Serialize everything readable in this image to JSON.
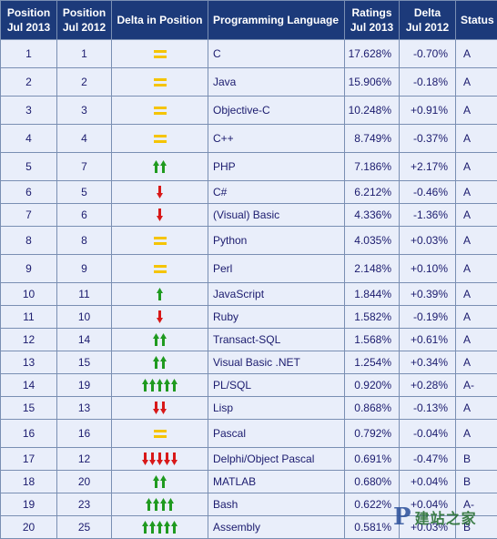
{
  "headers": {
    "pos2013": [
      "Position",
      "Jul 2013"
    ],
    "pos2012": [
      "Position",
      "Jul 2012"
    ],
    "delta_pos": "Delta in Position",
    "language": "Programming Language",
    "ratings": [
      "Ratings",
      "Jul 2013"
    ],
    "delta": [
      "Delta",
      "Jul 2012"
    ],
    "status": "Status"
  },
  "colors": {
    "header_bg": "#1c3a7a",
    "cell_bg": "#e9eefa",
    "up_arrow": "#1f9a1f",
    "down_arrow": "#d81818",
    "equal_sign": "#f5c400",
    "grid": "#7a8fb3"
  },
  "rows": [
    {
      "pos2013": "1",
      "pos2012": "1",
      "trend": "equal",
      "arrows": 0,
      "language": "C",
      "ratings": "17.628%",
      "delta": "-0.70%",
      "status": "A"
    },
    {
      "pos2013": "2",
      "pos2012": "2",
      "trend": "equal",
      "arrows": 0,
      "language": "Java",
      "ratings": "15.906%",
      "delta": "-0.18%",
      "status": "A"
    },
    {
      "pos2013": "3",
      "pos2012": "3",
      "trend": "equal",
      "arrows": 0,
      "language": "Objective-C",
      "ratings": "10.248%",
      "delta": "+0.91%",
      "status": "A"
    },
    {
      "pos2013": "4",
      "pos2012": "4",
      "trend": "equal",
      "arrows": 0,
      "language": "C++",
      "ratings": "8.749%",
      "delta": "-0.37%",
      "status": "A"
    },
    {
      "pos2013": "5",
      "pos2012": "7",
      "trend": "up",
      "arrows": 2,
      "language": "PHP",
      "ratings": "7.186%",
      "delta": "+2.17%",
      "status": "A"
    },
    {
      "pos2013": "6",
      "pos2012": "5",
      "trend": "down",
      "arrows": 1,
      "language": "C#",
      "ratings": "6.212%",
      "delta": "-0.46%",
      "status": "A"
    },
    {
      "pos2013": "7",
      "pos2012": "6",
      "trend": "down",
      "arrows": 1,
      "language": "(Visual) Basic",
      "ratings": "4.336%",
      "delta": "-1.36%",
      "status": "A"
    },
    {
      "pos2013": "8",
      "pos2012": "8",
      "trend": "equal",
      "arrows": 0,
      "language": "Python",
      "ratings": "4.035%",
      "delta": "+0.03%",
      "status": "A"
    },
    {
      "pos2013": "9",
      "pos2012": "9",
      "trend": "equal",
      "arrows": 0,
      "language": "Perl",
      "ratings": "2.148%",
      "delta": "+0.10%",
      "status": "A"
    },
    {
      "pos2013": "10",
      "pos2012": "11",
      "trend": "up",
      "arrows": 1,
      "language": "JavaScript",
      "ratings": "1.844%",
      "delta": "+0.39%",
      "status": "A"
    },
    {
      "pos2013": "11",
      "pos2012": "10",
      "trend": "down",
      "arrows": 1,
      "language": "Ruby",
      "ratings": "1.582%",
      "delta": "-0.19%",
      "status": "A"
    },
    {
      "pos2013": "12",
      "pos2012": "14",
      "trend": "up",
      "arrows": 2,
      "language": "Transact-SQL",
      "ratings": "1.568%",
      "delta": "+0.61%",
      "status": "A"
    },
    {
      "pos2013": "13",
      "pos2012": "15",
      "trend": "up",
      "arrows": 2,
      "language": "Visual Basic .NET",
      "ratings": "1.254%",
      "delta": "+0.34%",
      "status": "A"
    },
    {
      "pos2013": "14",
      "pos2012": "19",
      "trend": "up",
      "arrows": 5,
      "language": "PL/SQL",
      "ratings": "0.920%",
      "delta": "+0.28%",
      "status": "A-"
    },
    {
      "pos2013": "15",
      "pos2012": "13",
      "trend": "down",
      "arrows": 2,
      "language": "Lisp",
      "ratings": "0.868%",
      "delta": "-0.13%",
      "status": "A"
    },
    {
      "pos2013": "16",
      "pos2012": "16",
      "trend": "equal",
      "arrows": 0,
      "language": "Pascal",
      "ratings": "0.792%",
      "delta": "-0.04%",
      "status": "A"
    },
    {
      "pos2013": "17",
      "pos2012": "12",
      "trend": "down",
      "arrows": 5,
      "language": "Delphi/Object Pascal",
      "ratings": "0.691%",
      "delta": "-0.47%",
      "status": "B"
    },
    {
      "pos2013": "18",
      "pos2012": "20",
      "trend": "up",
      "arrows": 2,
      "language": "MATLAB",
      "ratings": "0.680%",
      "delta": "+0.04%",
      "status": "B"
    },
    {
      "pos2013": "19",
      "pos2012": "23",
      "trend": "up",
      "arrows": 4,
      "language": "Bash",
      "ratings": "0.622%",
      "delta": "+0.04%",
      "status": "A-"
    },
    {
      "pos2013": "20",
      "pos2012": "25",
      "trend": "up",
      "arrows": 5,
      "language": "Assembly",
      "ratings": "0.581%",
      "delta": "+0.03%",
      "status": "B"
    }
  ],
  "watermark": {
    "logo": "P",
    "text": "建站之家"
  }
}
